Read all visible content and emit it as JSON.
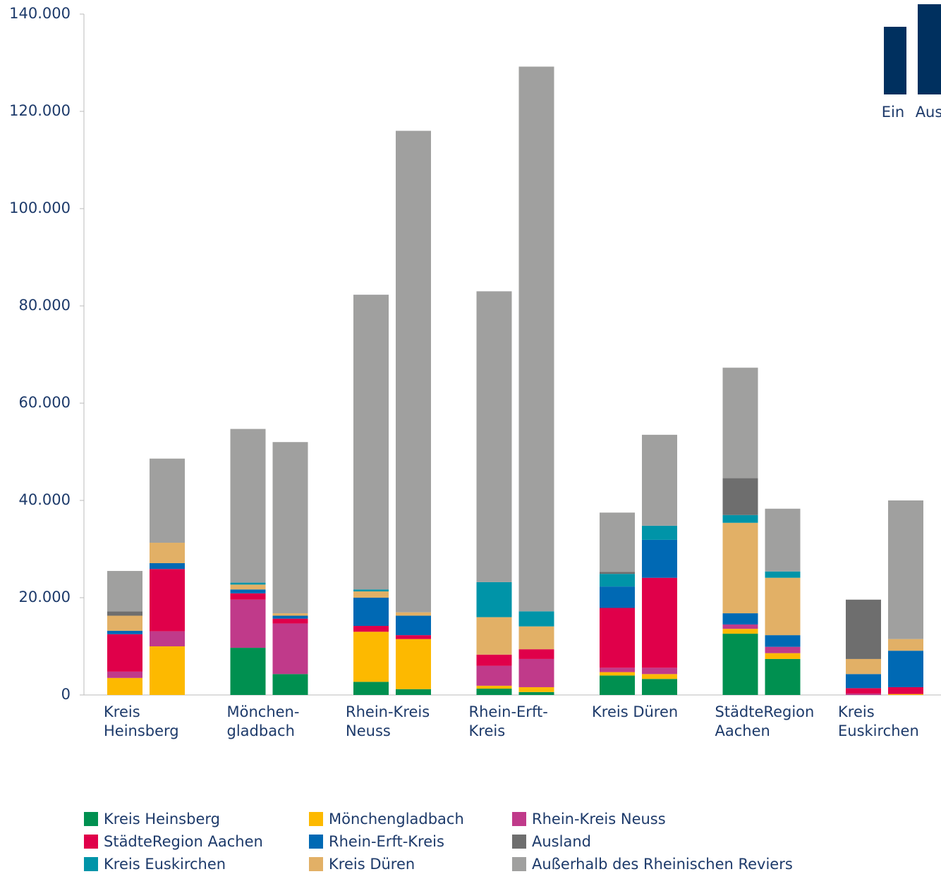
{
  "chart_data": {
    "type": "bar",
    "categories": [
      [
        "Kreis",
        "Heinsberg"
      ],
      [
        "Mönchen-",
        "gladbach"
      ],
      [
        "Rhein-Kreis",
        "Neuss"
      ],
      [
        "Rhein-Erft-",
        "Kreis"
      ],
      [
        "Kreis Düren"
      ],
      [
        "StädteRegion",
        "Aachen"
      ],
      [
        "Kreis",
        "Euskirchen"
      ]
    ],
    "groups": [
      "Ein",
      "Aus"
    ],
    "series": [
      {
        "name": "Kreis Heinsberg",
        "color": "#009050",
        "values": [
          [
            0,
            0
          ],
          [
            9.7,
            4.3
          ],
          [
            2.7,
            1.2
          ],
          [
            1.3,
            0.6
          ],
          [
            4.0,
            3.3
          ],
          [
            12.6,
            7.4
          ],
          [
            0,
            0
          ]
        ]
      },
      {
        "name": "Mönchengladbach",
        "color": "#fdb900",
        "values": [
          [
            3.5,
            10
          ],
          [
            0,
            0
          ],
          [
            10.3,
            10.3
          ],
          [
            0.6,
            1.0
          ],
          [
            0.7,
            1.0
          ],
          [
            1.0,
            1.2
          ],
          [
            0,
            0.2
          ]
        ]
      },
      {
        "name": "Rhein-Kreis Neuss",
        "color": "#c03a8a",
        "values": [
          [
            1.3,
            3.1
          ],
          [
            9.9,
            10.4
          ],
          [
            0,
            0
          ],
          [
            4.1,
            5.8
          ],
          [
            0.9,
            1.3
          ],
          [
            0.9,
            1.3
          ],
          [
            0.3,
            0
          ]
        ]
      },
      {
        "name": "StädteRegion Aachen",
        "color": "#e0004a",
        "values": [
          [
            7.7,
            12.8
          ],
          [
            1.3,
            1.0
          ],
          [
            1.2,
            0.8
          ],
          [
            2.3,
            2.0
          ],
          [
            12.3,
            18.5
          ],
          [
            0,
            0
          ],
          [
            1.1,
            1.4
          ]
        ]
      },
      {
        "name": "Rhein-Erft-Kreis",
        "color": "#0069b4",
        "values": [
          [
            0.7,
            1.2
          ],
          [
            0.8,
            0.6
          ],
          [
            5.8,
            4.0
          ],
          [
            0,
            0
          ],
          [
            4.4,
            7.8
          ],
          [
            2.3,
            2.4
          ],
          [
            2.9,
            7.5
          ]
        ]
      },
      {
        "name": "Kreis Düren",
        "color": "#e2b066",
        "values": [
          [
            3.1,
            4.2
          ],
          [
            1.0,
            0.5
          ],
          [
            1.3,
            0.7
          ],
          [
            7.7,
            4.7
          ],
          [
            0,
            0
          ],
          [
            18.6,
            11.8
          ],
          [
            3.1,
            2.4
          ]
        ]
      },
      {
        "name": "Kreis Euskirchen",
        "color": "#0094a8",
        "values": [
          [
            0,
            0
          ],
          [
            0.4,
            0
          ],
          [
            0.4,
            0
          ],
          [
            7.2,
            3.1
          ],
          [
            2.6,
            2.9
          ],
          [
            1.6,
            1.3
          ],
          [
            0,
            0
          ]
        ]
      },
      {
        "name": "Ausland",
        "color": "#6e6e6e",
        "values": [
          [
            0.9,
            0
          ],
          [
            0,
            0
          ],
          [
            0,
            0
          ],
          [
            0,
            0
          ],
          [
            0.4,
            0
          ],
          [
            7.6,
            0
          ],
          [
            12.2,
            0
          ]
        ]
      },
      {
        "name": "Außerhalb des Rheinischen Reviers",
        "color": "#a0a09f",
        "values": [
          [
            8.3,
            17.3
          ],
          [
            31.6,
            35.2
          ],
          [
            60.6,
            99
          ],
          [
            59.8,
            112
          ],
          [
            12.2,
            18.7
          ],
          [
            22.7,
            12.9
          ],
          [
            0,
            28.5
          ]
        ]
      }
    ],
    "ylim": [
      0,
      140000
    ],
    "value_scale": 1000,
    "yticks": [
      0,
      {
        "value": 20000,
        "label": "20.000"
      },
      {
        "value": 40000,
        "label": "40.000"
      },
      {
        "value": 60000,
        "label": "60.000"
      },
      {
        "value": 80000,
        "label": "80.000"
      },
      {
        "value": 100000,
        "label": "100.000"
      },
      {
        "value": 120000,
        "label": "120.000"
      },
      {
        "value": 140000,
        "label": "140.000"
      }
    ],
    "grid": false
  }
}
